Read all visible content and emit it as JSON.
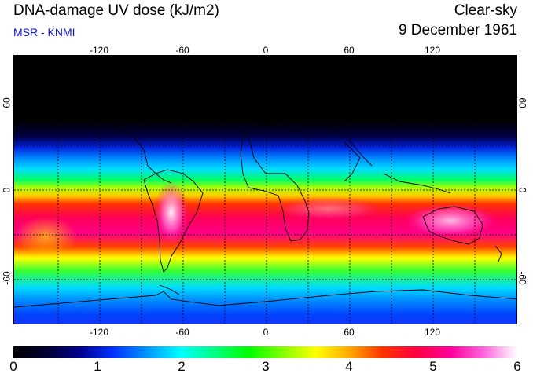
{
  "header": {
    "title": "DNA-damage UV dose (kJ/m2)",
    "subtitle": "MSR - KNMI",
    "condition": "Clear-sky",
    "date": "9 December 1961"
  },
  "colors": {
    "subtitle": "#1010dd",
    "scale": [
      "#000000",
      "#000033",
      "#00008c",
      "#0033ff",
      "#0099ff",
      "#00ffff",
      "#00ff80",
      "#00ff00",
      "#80ff00",
      "#ffff00",
      "#ffaa00",
      "#ff3300",
      "#ff0040",
      "#ff0099",
      "#ff66dd",
      "#ffffff"
    ]
  },
  "map": {
    "lon_ticks": [
      "-120",
      "-60",
      "0",
      "60",
      "120"
    ],
    "lat_ticks": [
      "60",
      "0",
      "-60"
    ]
  },
  "colorbar": {
    "labels": [
      "0",
      "1",
      "2",
      "3",
      "4",
      "5",
      "6"
    ],
    "min": 0,
    "max": 6
  }
}
